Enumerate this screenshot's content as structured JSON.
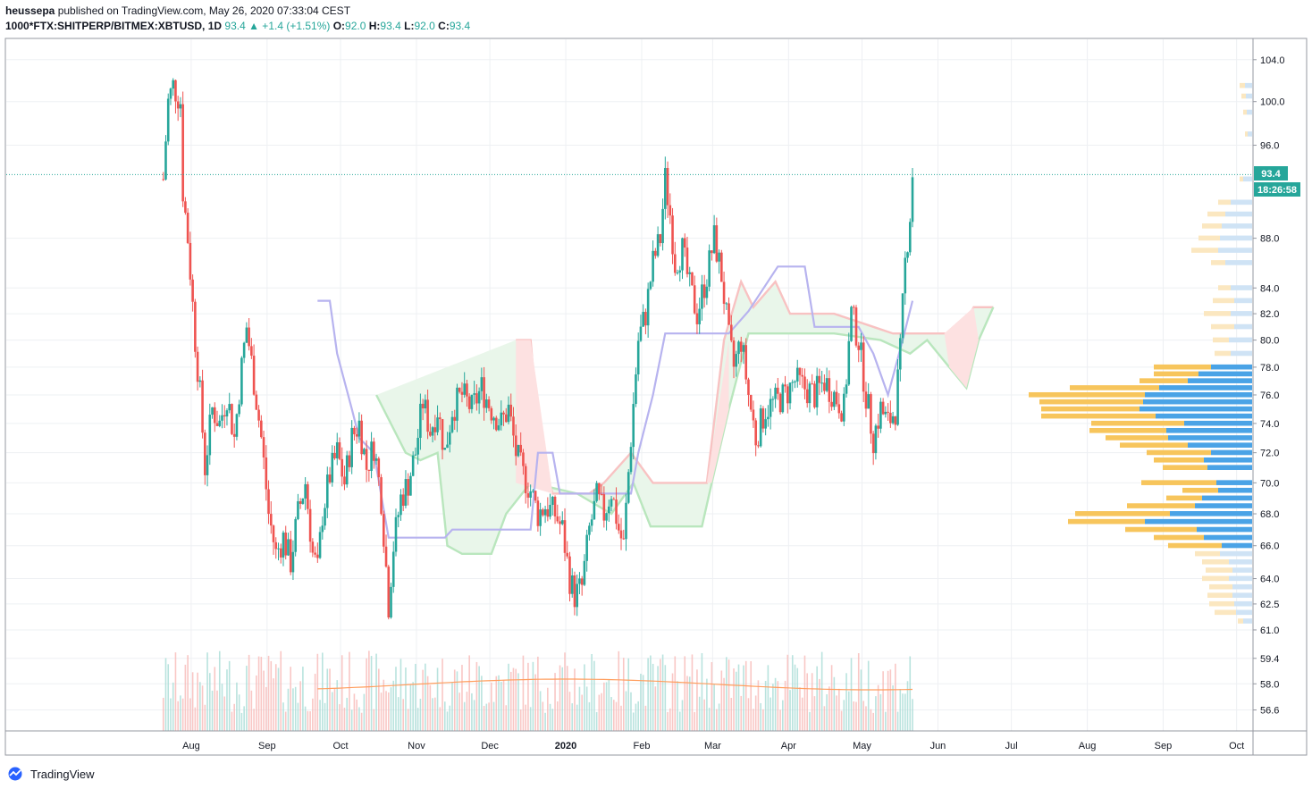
{
  "header": {
    "author": "heussepa",
    "published_text": "published on TradingView.com, May 26, 2020 07:33:04 CEST",
    "symbol": "1000*FTX:SHITPERP/BITMEX:XBTUSD, 1D",
    "last": "93.4",
    "change": "▲ +1.4 (+1.51%)",
    "o_label": "O:",
    "o_value": "92.0",
    "h_label": "H:",
    "h_value": "93.4",
    "l_label": "L:",
    "l_value": "92.0",
    "c_label": "C:",
    "c_value": "93.4"
  },
  "price_badge": "93.4",
  "countdown_badge": "18:26:58",
  "footer": {
    "brand": "TradingView"
  },
  "colors": {
    "up": "#26a69a",
    "down": "#ef5350",
    "grid": "#eef0f3",
    "cloud_bull": "#b9e6bd",
    "cloud_bear": "#f8c2c2",
    "baseline": "#b7b3ef",
    "volume_ma": "#ff9e5e",
    "vp_up": "#4aa3e6",
    "vp_down": "#f7c55c"
  },
  "chart_data": {
    "type": "candlestick",
    "price_axis": {
      "ticks": [
        "104.0",
        "100.0",
        "96.0",
        "88.0",
        "84.0",
        "82.0",
        "80.0",
        "78.0",
        "76.0",
        "74.0",
        "72.0",
        "70.0",
        "68.0",
        "66.0",
        "64.0",
        "62.5",
        "61.0",
        "59.4",
        "58.0",
        "56.6"
      ],
      "scale": "log",
      "ylim": [
        55.5,
        106
      ]
    },
    "time_axis": {
      "ticks": [
        "Aug",
        "Sep",
        "Oct",
        "Nov",
        "Dec",
        "2020",
        "Feb",
        "Mar",
        "Apr",
        "May",
        "Jun",
        "Jul",
        "Aug",
        "Sep",
        "Oct"
      ]
    },
    "close_series": [
      {
        "d": "2019-07-25",
        "v": 93
      },
      {
        "d": "2019-07-27",
        "v": 100
      },
      {
        "d": "2019-07-29",
        "v": 101.5
      },
      {
        "d": "2019-08-01",
        "v": 100
      },
      {
        "d": "2019-08-02",
        "v": 92
      },
      {
        "d": "2019-08-04",
        "v": 88
      },
      {
        "d": "2019-08-07",
        "v": 80
      },
      {
        "d": "2019-08-09",
        "v": 76
      },
      {
        "d": "2019-08-11",
        "v": 71
      },
      {
        "d": "2019-08-14",
        "v": 75
      },
      {
        "d": "2019-08-17",
        "v": 74
      },
      {
        "d": "2019-08-20",
        "v": 76
      },
      {
        "d": "2019-08-23",
        "v": 73
      },
      {
        "d": "2019-08-26",
        "v": 78
      },
      {
        "d": "2019-08-28",
        "v": 81
      },
      {
        "d": "2019-08-31",
        "v": 77
      },
      {
        "d": "2019-09-03",
        "v": 73
      },
      {
        "d": "2019-09-06",
        "v": 68
      },
      {
        "d": "2019-09-09",
        "v": 65.5
      },
      {
        "d": "2019-09-12",
        "v": 66.5
      },
      {
        "d": "2019-09-15",
        "v": 65
      },
      {
        "d": "2019-09-18",
        "v": 68
      },
      {
        "d": "2019-09-21",
        "v": 70
      },
      {
        "d": "2019-09-24",
        "v": 65.5
      },
      {
        "d": "2019-09-26",
        "v": 64.5
      },
      {
        "d": "2019-09-28",
        "v": 68
      },
      {
        "d": "2019-10-01",
        "v": 70.5
      },
      {
        "d": "2019-10-04",
        "v": 72
      },
      {
        "d": "2019-10-07",
        "v": 70
      },
      {
        "d": "2019-10-10",
        "v": 73
      },
      {
        "d": "2019-10-13",
        "v": 74
      },
      {
        "d": "2019-10-16",
        "v": 71
      },
      {
        "d": "2019-10-19",
        "v": 72.5
      },
      {
        "d": "2019-10-22",
        "v": 69
      },
      {
        "d": "2019-10-25",
        "v": 62.5
      },
      {
        "d": "2019-10-27",
        "v": 66
      },
      {
        "d": "2019-10-30",
        "v": 69
      },
      {
        "d": "2019-11-02",
        "v": 70
      },
      {
        "d": "2019-11-05",
        "v": 72
      },
      {
        "d": "2019-11-08",
        "v": 75.5
      },
      {
        "d": "2019-11-11",
        "v": 73.5
      },
      {
        "d": "2019-11-14",
        "v": 75
      },
      {
        "d": "2019-11-17",
        "v": 72
      },
      {
        "d": "2019-11-20",
        "v": 75
      },
      {
        "d": "2019-11-24",
        "v": 76
      },
      {
        "d": "2019-11-28",
        "v": 75
      },
      {
        "d": "2019-12-02",
        "v": 76.5
      },
      {
        "d": "2019-12-06",
        "v": 75
      },
      {
        "d": "2019-12-10",
        "v": 74
      },
      {
        "d": "2019-12-13",
        "v": 75
      },
      {
        "d": "2019-12-16",
        "v": 72
      },
      {
        "d": "2019-12-19",
        "v": 70.5
      },
      {
        "d": "2019-12-22",
        "v": 69.5
      },
      {
        "d": "2019-12-25",
        "v": 68
      },
      {
        "d": "2019-12-28",
        "v": 68.5
      },
      {
        "d": "2020-01-01",
        "v": 68
      },
      {
        "d": "2020-01-04",
        "v": 67
      },
      {
        "d": "2020-01-07",
        "v": 64
      },
      {
        "d": "2020-01-09",
        "v": 63
      },
      {
        "d": "2020-01-12",
        "v": 63.5
      },
      {
        "d": "2020-01-15",
        "v": 67
      },
      {
        "d": "2020-01-18",
        "v": 69
      },
      {
        "d": "2020-01-21",
        "v": 68
      },
      {
        "d": "2020-01-24",
        "v": 69.5
      },
      {
        "d": "2020-01-27",
        "v": 67
      },
      {
        "d": "2020-01-29",
        "v": 66
      },
      {
        "d": "2020-02-01",
        "v": 73
      },
      {
        "d": "2020-02-04",
        "v": 80
      },
      {
        "d": "2020-02-07",
        "v": 82
      },
      {
        "d": "2020-02-10",
        "v": 86
      },
      {
        "d": "2020-02-13",
        "v": 88
      },
      {
        "d": "2020-02-15",
        "v": 93
      },
      {
        "d": "2020-02-17",
        "v": 90
      },
      {
        "d": "2020-02-19",
        "v": 86
      },
      {
        "d": "2020-02-22",
        "v": 87
      },
      {
        "d": "2020-02-25",
        "v": 84
      },
      {
        "d": "2020-02-28",
        "v": 82
      },
      {
        "d": "2020-03-03",
        "v": 85
      },
      {
        "d": "2020-03-06",
        "v": 88
      },
      {
        "d": "2020-03-09",
        "v": 85
      },
      {
        "d": "2020-03-12",
        "v": 80
      },
      {
        "d": "2020-03-14",
        "v": 78
      },
      {
        "d": "2020-03-17",
        "v": 80
      },
      {
        "d": "2020-03-20",
        "v": 76
      },
      {
        "d": "2020-03-23",
        "v": 73
      },
      {
        "d": "2020-03-27",
        "v": 75
      },
      {
        "d": "2020-03-31",
        "v": 75.5
      },
      {
        "d": "2020-04-04",
        "v": 76
      },
      {
        "d": "2020-04-08",
        "v": 77
      },
      {
        "d": "2020-04-12",
        "v": 76.5
      },
      {
        "d": "2020-04-16",
        "v": 76
      },
      {
        "d": "2020-04-20",
        "v": 77
      },
      {
        "d": "2020-04-24",
        "v": 76
      },
      {
        "d": "2020-04-28",
        "v": 75
      },
      {
        "d": "2020-05-01",
        "v": 82
      },
      {
        "d": "2020-05-04",
        "v": 80
      },
      {
        "d": "2020-05-07",
        "v": 76
      },
      {
        "d": "2020-05-10",
        "v": 73
      },
      {
        "d": "2020-05-13",
        "v": 75
      },
      {
        "d": "2020-05-16",
        "v": 74
      },
      {
        "d": "2020-05-19",
        "v": 75
      },
      {
        "d": "2020-05-21",
        "v": 79
      },
      {
        "d": "2020-05-23",
        "v": 86
      },
      {
        "d": "2020-05-25",
        "v": 90
      },
      {
        "d": "2020-05-26",
        "v": 93.4
      }
    ],
    "baseline_series": [
      {
        "d": "2019-09-26",
        "v": 83
      },
      {
        "d": "2019-10-01",
        "v": 83
      },
      {
        "d": "2019-10-04",
        "v": 79
      },
      {
        "d": "2019-10-10",
        "v": 75
      },
      {
        "d": "2019-10-13",
        "v": 73
      },
      {
        "d": "2019-10-19",
        "v": 72
      },
      {
        "d": "2019-10-25",
        "v": 66.5
      },
      {
        "d": "2019-11-17",
        "v": 66.5
      },
      {
        "d": "2019-11-20",
        "v": 67
      },
      {
        "d": "2019-12-22",
        "v": 67
      },
      {
        "d": "2019-12-25",
        "v": 72
      },
      {
        "d": "2019-12-31",
        "v": 72
      },
      {
        "d": "2020-01-03",
        "v": 69.3
      },
      {
        "d": "2020-02-01",
        "v": 69.3
      },
      {
        "d": "2020-02-04",
        "v": 72
      },
      {
        "d": "2020-02-10",
        "v": 76
      },
      {
        "d": "2020-02-15",
        "v": 80.5
      },
      {
        "d": "2020-03-12",
        "v": 80.5
      },
      {
        "d": "2020-03-20",
        "v": 82.2
      },
      {
        "d": "2020-04-01",
        "v": 85.7
      },
      {
        "d": "2020-04-12",
        "v": 85.7
      },
      {
        "d": "2020-04-16",
        "v": 81
      },
      {
        "d": "2020-05-04",
        "v": 81
      },
      {
        "d": "2020-05-10",
        "v": 79
      },
      {
        "d": "2020-05-16",
        "v": 76
      },
      {
        "d": "2020-05-22",
        "v": 80
      },
      {
        "d": "2020-05-26",
        "v": 83
      }
    ],
    "cloud_upper": [
      {
        "d": "2019-12-16",
        "v": 80
      },
      {
        "d": "2019-12-22",
        "v": 80
      },
      {
        "d": "2019-12-26",
        "v": 72
      },
      {
        "d": "2019-12-31",
        "v": 69.3
      },
      {
        "d": "2020-01-15",
        "v": 69.3
      },
      {
        "d": "2020-01-21",
        "v": 70
      },
      {
        "d": "2020-02-01",
        "v": 72
      },
      {
        "d": "2020-02-10",
        "v": 70
      },
      {
        "d": "2020-03-03",
        "v": 70
      },
      {
        "d": "2020-03-10",
        "v": 80
      },
      {
        "d": "2020-03-17",
        "v": 84.5
      },
      {
        "d": "2020-03-22",
        "v": 82.5
      },
      {
        "d": "2020-03-31",
        "v": 84.5
      },
      {
        "d": "2020-04-06",
        "v": 82
      },
      {
        "d": "2020-04-24",
        "v": 82
      },
      {
        "d": "2020-05-10",
        "v": 81
      },
      {
        "d": "2020-05-18",
        "v": 80.5
      },
      {
        "d": "2020-06-14",
        "v": 80.5
      },
      {
        "d": "2020-06-20",
        "v": 82.5
      },
      {
        "d": "2020-06-28",
        "v": 82.5
      }
    ],
    "cloud_lower": [
      {
        "d": "2019-10-20",
        "v": 76
      },
      {
        "d": "2019-11-01",
        "v": 72
      },
      {
        "d": "2019-11-07",
        "v": 71.5
      },
      {
        "d": "2019-11-14",
        "v": 72
      },
      {
        "d": "2019-11-18",
        "v": 66
      },
      {
        "d": "2019-11-24",
        "v": 65.5
      },
      {
        "d": "2019-12-06",
        "v": 65.5
      },
      {
        "d": "2019-12-12",
        "v": 68
      },
      {
        "d": "2019-12-22",
        "v": 70
      },
      {
        "d": "2020-01-10",
        "v": 69.3
      },
      {
        "d": "2020-01-24",
        "v": 68
      },
      {
        "d": "2020-02-02",
        "v": 70
      },
      {
        "d": "2020-02-09",
        "v": 67.2
      },
      {
        "d": "2020-03-01",
        "v": 67.2
      },
      {
        "d": "2020-03-05",
        "v": 70
      },
      {
        "d": "2020-03-12",
        "v": 75
      },
      {
        "d": "2020-03-20",
        "v": 80.5
      },
      {
        "d": "2020-04-24",
        "v": 80.5
      },
      {
        "d": "2020-05-13",
        "v": 80
      },
      {
        "d": "2020-05-25",
        "v": 79
      },
      {
        "d": "2020-06-01",
        "v": 80
      },
      {
        "d": "2020-06-10",
        "v": 78
      },
      {
        "d": "2020-06-17",
        "v": 76.5
      },
      {
        "d": "2020-06-22",
        "v": 80
      },
      {
        "d": "2020-06-28",
        "v": 82.5
      }
    ],
    "volume_profile": [
      {
        "price": 101.5,
        "up": 8,
        "down": 6
      },
      {
        "price": 100.5,
        "up": 7,
        "down": 5
      },
      {
        "price": 99,
        "up": 6,
        "down": 4
      },
      {
        "price": 97,
        "up": 5,
        "down": 3
      },
      {
        "price": 93,
        "up": 10,
        "down": 4
      },
      {
        "price": 91,
        "up": 24,
        "down": 14
      },
      {
        "price": 90,
        "up": 30,
        "down": 20
      },
      {
        "price": 89,
        "up": 34,
        "down": 22
      },
      {
        "price": 88,
        "up": 36,
        "down": 24
      },
      {
        "price": 87,
        "up": 38,
        "down": 30
      },
      {
        "price": 86,
        "up": 30,
        "down": 16
      },
      {
        "price": 84,
        "up": 24,
        "down": 14
      },
      {
        "price": 83,
        "up": 20,
        "down": 24
      },
      {
        "price": 82,
        "up": 24,
        "down": 30
      },
      {
        "price": 81,
        "up": 20,
        "down": 26
      },
      {
        "price": 80,
        "up": 26,
        "down": 18
      },
      {
        "price": 79,
        "up": 24,
        "down": 18
      },
      {
        "price": 78,
        "up": 46,
        "down": 64
      },
      {
        "price": 77.5,
        "up": 60,
        "down": 50
      },
      {
        "price": 77,
        "up": 72,
        "down": 54
      },
      {
        "price": 76.5,
        "up": 104,
        "down": 100
      },
      {
        "price": 76,
        "up": 120,
        "down": 130
      },
      {
        "price": 75.5,
        "up": 122,
        "down": 116
      },
      {
        "price": 75,
        "up": 126,
        "down": 110
      },
      {
        "price": 74.5,
        "up": 108,
        "down": 128
      },
      {
        "price": 74,
        "up": 76,
        "down": 104
      },
      {
        "price": 73.5,
        "up": 96,
        "down": 86
      },
      {
        "price": 73,
        "up": 94,
        "down": 70
      },
      {
        "price": 72.5,
        "up": 72,
        "down": 76
      },
      {
        "price": 72,
        "up": 46,
        "down": 72
      },
      {
        "price": 71.5,
        "up": 54,
        "down": 56
      },
      {
        "price": 71,
        "up": 50,
        "down": 50
      },
      {
        "price": 70,
        "up": 40,
        "down": 84
      },
      {
        "price": 69.5,
        "up": 38,
        "down": 40
      },
      {
        "price": 69,
        "up": 56,
        "down": 40
      },
      {
        "price": 68.5,
        "up": 64,
        "down": 76
      },
      {
        "price": 68,
        "up": 92,
        "down": 106
      },
      {
        "price": 67.5,
        "up": 120,
        "down": 86
      },
      {
        "price": 67,
        "up": 62,
        "down": 80
      },
      {
        "price": 66.5,
        "up": 54,
        "down": 56
      },
      {
        "price": 66,
        "up": 34,
        "down": 60
      },
      {
        "price": 65.5,
        "up": 36,
        "down": 28
      },
      {
        "price": 65,
        "up": 26,
        "down": 30
      },
      {
        "price": 64.5,
        "up": 22,
        "down": 30
      },
      {
        "price": 64,
        "up": 26,
        "down": 30
      },
      {
        "price": 63.5,
        "up": 22,
        "down": 26
      },
      {
        "price": 63,
        "up": 22,
        "down": 28
      },
      {
        "price": 62.5,
        "up": 20,
        "down": 28
      },
      {
        "price": 62,
        "up": 18,
        "down": 24
      },
      {
        "price": 61.5,
        "up": 10,
        "down": 6
      }
    ]
  }
}
